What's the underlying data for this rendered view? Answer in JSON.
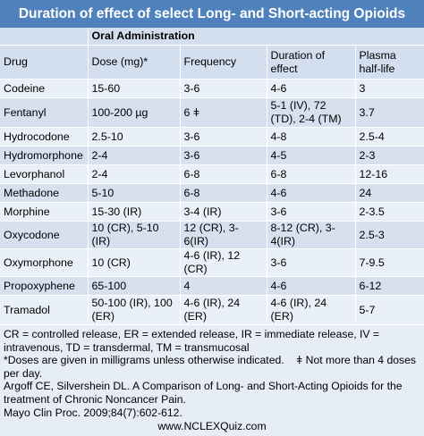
{
  "title": "Duration of effect of select Long- and Short-acting Opioids",
  "group_header": "Oral Administration",
  "columns": [
    "Drug",
    "Dose (mg)*",
    "Frequency",
    "Duration of effect",
    "Plasma half-life"
  ],
  "rows": [
    [
      "Codeine",
      "15-60",
      "3-6",
      "4-6",
      "3"
    ],
    [
      "Fentanyl",
      "100-200 µg",
      "6 ǂ",
      "5-1 (IV), 72 (TD), 2-4 (TM)",
      "3.7"
    ],
    [
      "Hydrocodone",
      "2.5-10",
      "3-6",
      "4-8",
      "2.5-4"
    ],
    [
      "Hydromorphone",
      "2-4",
      "3-6",
      "4-5",
      "2-3"
    ],
    [
      "Levorphanol",
      "2-4",
      "6-8",
      "6-8",
      "12-16"
    ],
    [
      "Methadone",
      "5-10",
      "6-8",
      "4-6",
      "24"
    ],
    [
      "Morphine",
      "15-30 (IR)",
      "3-4 (IR)",
      "3-6",
      "2-3.5"
    ],
    [
      "Oxycodone",
      "10 (CR), 5-10 (IR)",
      "12 (CR), 3-6(IR)",
      "8-12 (CR), 3-4(IR)",
      "2.5-3"
    ],
    [
      "Oxymorphone",
      "10 (CR)",
      "4-6 (IR), 12 (CR)",
      "3-6",
      "7-9.5"
    ],
    [
      "Propoxyphene",
      "65-100",
      "4",
      "4-6",
      "6-12"
    ],
    [
      "Tramadol",
      "50-100 (IR), 100 (ER)",
      "4-6 (IR), 24 (ER)",
      "4-6 (IR), 24 (ER)",
      "5-7"
    ]
  ],
  "footnotes": {
    "abbreviations": "CR = controlled release, ER = extended release, IR = immediate release, IV = intravenous, TD = transdermal, TM = transmucosal",
    "doses_note": "*Doses are given in milligrams unless otherwise indicated.    ǂ Not more than 4 doses per day.",
    "citation": "Argoff CE, Silvershein DL. A Comparison of Long- and Short-Acting Opioids for the treatment of Chronic Noncancer Pain.",
    "journal": "Mayo Clin Proc. 2009;84(7):602-612.",
    "website": "www.NCLEXQuiz.com"
  },
  "colors": {
    "title_bg": "#4f81bd",
    "header_bg": "#d3dfee",
    "row_light": "#eaf0f8",
    "row_dark": "#d6e0ef"
  }
}
